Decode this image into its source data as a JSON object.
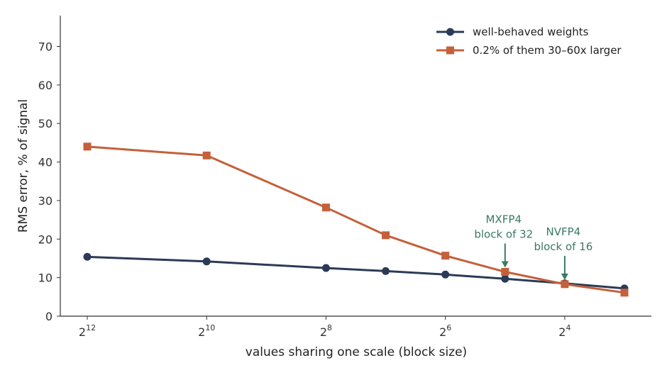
{
  "chart_data": {
    "type": "line",
    "title": "",
    "xlabel": "values sharing one scale (block size)",
    "ylabel": "RMS error, % of signal",
    "x_axis": {
      "scale": "log2, reversed",
      "range": [
        4096,
        8
      ],
      "ticks": [
        {
          "value": 4096,
          "base": "2",
          "exp": "12"
        },
        {
          "value": 1024,
          "base": "2",
          "exp": "10"
        },
        {
          "value": 256,
          "base": "2",
          "exp": "8"
        },
        {
          "value": 64,
          "base": "2",
          "exp": "6"
        },
        {
          "value": 16,
          "base": "2",
          "exp": "4"
        }
      ]
    },
    "y_axis": {
      "range": [
        0,
        78
      ],
      "ticks": [
        0,
        10,
        20,
        30,
        40,
        50,
        60,
        70
      ]
    },
    "x": [
      4096,
      1024,
      256,
      128,
      64,
      32,
      16,
      8
    ],
    "series": [
      {
        "name": "well-behaved weights",
        "color": "#2b3a55",
        "marker": "circle",
        "values": [
          15.4,
          14.2,
          12.5,
          11.7,
          10.8,
          9.7,
          8.5,
          7.2
        ]
      },
      {
        "name": "0.2% of them 30–60x larger",
        "color": "#c4603a",
        "marker": "square",
        "values": [
          44.0,
          41.7,
          28.2,
          21.0,
          15.7,
          11.5,
          8.3,
          6.1
        ]
      }
    ],
    "annotations": [
      {
        "lines": [
          "MXFP4",
          "block of 32"
        ],
        "x": 32,
        "y": 11.5,
        "color": "#3a7a62"
      },
      {
        "lines": [
          "NVFP4",
          "block of 16"
        ],
        "x": 16,
        "y": 8.3,
        "color": "#3a7a62"
      }
    ],
    "legend": "top-right",
    "grid": false
  }
}
